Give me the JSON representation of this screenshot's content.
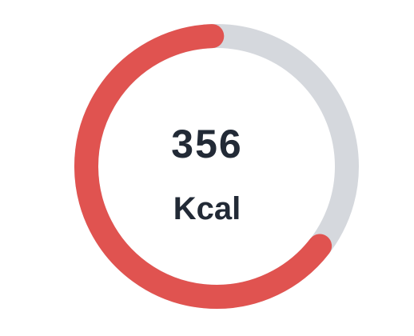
{
  "calories": {
    "value": "356",
    "unit": "Kcal",
    "progress_fraction": 0.64
  },
  "colors": {
    "progress": "#e05350",
    "track": "#d5d8dd",
    "text": "#222a36",
    "background": "#ffffff"
  }
}
